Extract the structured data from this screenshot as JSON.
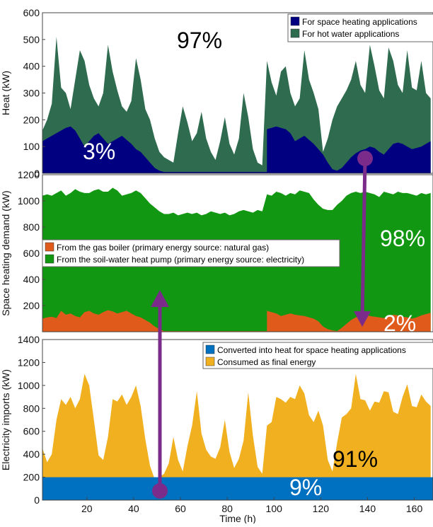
{
  "chart_data": [
    {
      "type": "area",
      "ylabel": "Heat (kW)",
      "ylim": [
        0,
        600
      ],
      "yticks": [
        0,
        100,
        200,
        300,
        400,
        500,
        600
      ],
      "xlim": [
        1,
        168
      ],
      "legend_position": "top-right",
      "series": [
        {
          "name": "For space heating applications",
          "color": "#000080",
          "x": [
            1,
            3,
            5,
            7,
            9,
            11,
            13,
            15,
            17,
            19,
            21,
            23,
            25,
            27,
            29,
            31,
            33,
            35,
            37,
            39,
            41,
            43,
            45,
            47,
            49,
            51,
            53,
            55,
            57,
            59,
            61,
            63,
            65,
            67,
            69,
            71,
            73,
            75,
            77,
            79,
            81,
            83,
            85,
            87,
            89,
            91,
            93,
            95,
            97,
            97,
            99,
            101,
            103,
            105,
            107,
            109,
            111,
            113,
            115,
            117,
            119,
            121,
            123,
            125,
            127,
            129,
            131,
            133,
            135,
            137,
            139,
            141,
            143,
            145,
            147,
            149,
            151,
            153,
            155,
            157,
            159,
            161,
            163,
            165,
            167
          ],
          "values": [
            120,
            130,
            140,
            150,
            160,
            170,
            175,
            160,
            130,
            100,
            120,
            140,
            150,
            130,
            110,
            120,
            130,
            140,
            125,
            110,
            90,
            80,
            60,
            40,
            20,
            10,
            5,
            5,
            5,
            5,
            5,
            5,
            5,
            5,
            5,
            5,
            5,
            5,
            5,
            5,
            5,
            5,
            5,
            5,
            5,
            5,
            5,
            5,
            5,
            165,
            170,
            175,
            170,
            165,
            150,
            120,
            130,
            140,
            125,
            110,
            90,
            70,
            40,
            15,
            10,
            20,
            40,
            60,
            75,
            85,
            90,
            100,
            95,
            80,
            70,
            90,
            110,
            115,
            110,
            100,
            90,
            95,
            100,
            110,
            120
          ]
        },
        {
          "name": "For hot water applications",
          "color": "#2e6b4f",
          "x": [
            1,
            3,
            5,
            7,
            9,
            11,
            13,
            15,
            17,
            19,
            21,
            23,
            25,
            27,
            29,
            31,
            33,
            35,
            37,
            39,
            41,
            43,
            45,
            47,
            49,
            51,
            53,
            55,
            57,
            59,
            61,
            63,
            65,
            67,
            69,
            71,
            73,
            75,
            77,
            79,
            81,
            83,
            85,
            87,
            89,
            91,
            93,
            95,
            97,
            99,
            101,
            103,
            105,
            107,
            109,
            111,
            113,
            115,
            117,
            119,
            121,
            123,
            125,
            127,
            129,
            131,
            133,
            135,
            137,
            139,
            141,
            143,
            145,
            147,
            149,
            151,
            153,
            155,
            157,
            159,
            161,
            163,
            165,
            167
          ],
          "values": [
            160,
            200,
            260,
            510,
            320,
            300,
            240,
            350,
            460,
            420,
            330,
            280,
            250,
            300,
            480,
            380,
            310,
            250,
            230,
            270,
            430,
            350,
            240,
            200,
            130,
            80,
            60,
            50,
            40,
            150,
            250,
            190,
            120,
            150,
            230,
            130,
            80,
            50,
            120,
            210,
            110,
            70,
            130,
            300,
            210,
            90,
            40,
            30,
            420,
            340,
            290,
            380,
            400,
            300,
            250,
            280,
            460,
            350,
            300,
            240,
            80,
            130,
            200,
            250,
            280,
            310,
            350,
            420,
            330,
            300,
            480,
            400,
            310,
            280,
            470,
            420,
            330,
            300,
            460,
            320,
            310,
            420,
            300,
            280
          ]
        }
      ],
      "annotations": [
        "97%",
        "3%"
      ]
    },
    {
      "type": "area",
      "ylabel": "Space heating demand (kW)",
      "ylim": [
        0,
        1200
      ],
      "yticks": [
        200,
        400,
        600,
        800,
        1000,
        1200
      ],
      "xlim": [
        1,
        168
      ],
      "legend_position": "middle-left",
      "series": [
        {
          "name": "From the gas boiler (primary energy source: natural gas)",
          "color": "#e05a1c",
          "x": [
            1,
            3,
            5,
            7,
            9,
            11,
            13,
            15,
            17,
            19,
            21,
            23,
            25,
            27,
            29,
            31,
            33,
            35,
            37,
            39,
            41,
            43,
            45,
            47,
            49,
            51,
            53,
            55,
            57,
            59,
            61,
            63,
            65,
            67,
            69,
            71,
            73,
            75,
            77,
            79,
            81,
            83,
            85,
            87,
            89,
            91,
            93,
            95,
            97,
            97,
            99,
            101,
            103,
            105,
            107,
            109,
            111,
            113,
            115,
            117,
            119,
            121,
            123,
            125,
            127,
            129,
            131,
            133,
            135,
            137,
            139,
            141,
            143,
            145,
            147,
            149,
            151,
            153,
            155,
            157,
            159,
            161,
            163,
            165,
            167
          ],
          "values": [
            100,
            110,
            115,
            105,
            160,
            130,
            140,
            120,
            110,
            150,
            160,
            140,
            130,
            150,
            165,
            155,
            140,
            150,
            160,
            140,
            120,
            110,
            90,
            70,
            40,
            20,
            5,
            5,
            5,
            5,
            5,
            5,
            5,
            5,
            5,
            5,
            5,
            5,
            5,
            5,
            5,
            5,
            5,
            5,
            5,
            5,
            5,
            5,
            5,
            160,
            150,
            140,
            120,
            130,
            140,
            130,
            125,
            120,
            110,
            100,
            80,
            40,
            20,
            10,
            5,
            30,
            60,
            90,
            110,
            120,
            130,
            120,
            115,
            110,
            105,
            120,
            130,
            125,
            115,
            110,
            100,
            110,
            125,
            135,
            145
          ]
        },
        {
          "name": "From the soil-water heat pump (primary energy source: electricity)",
          "color": "#119711",
          "x": [
            1,
            3,
            5,
            7,
            9,
            11,
            13,
            15,
            17,
            19,
            21,
            23,
            25,
            27,
            29,
            31,
            33,
            35,
            37,
            39,
            41,
            43,
            45,
            47,
            49,
            51,
            53,
            55,
            57,
            59,
            61,
            63,
            65,
            67,
            69,
            71,
            73,
            75,
            77,
            79,
            81,
            83,
            85,
            87,
            89,
            91,
            93,
            95,
            97,
            99,
            101,
            103,
            105,
            107,
            109,
            111,
            113,
            115,
            117,
            119,
            121,
            123,
            125,
            127,
            129,
            131,
            133,
            135,
            137,
            139,
            141,
            143,
            145,
            147,
            149,
            151,
            153,
            155,
            157,
            159,
            161,
            163,
            165,
            167
          ],
          "values": [
            1040,
            1050,
            1040,
            1060,
            1080,
            1040,
            1060,
            1090,
            1070,
            1060,
            1060,
            1080,
            1090,
            1070,
            1070,
            1100,
            1080,
            1040,
            1050,
            1060,
            1080,
            1060,
            1020,
            980,
            950,
            920,
            900,
            900,
            910,
            890,
            900,
            910,
            900,
            910,
            890,
            900,
            920,
            910,
            900,
            910,
            890,
            900,
            920,
            930,
            920,
            910,
            930,
            920,
            1050,
            1040,
            1070,
            1060,
            1040,
            1060,
            1050,
            1080,
            1070,
            1060,
            1010,
            970,
            940,
            930,
            930,
            970,
            1000,
            1040,
            1060,
            1070,
            1060,
            1070,
            1060,
            1050,
            1030,
            1070,
            1060,
            1050,
            1070,
            1060,
            1060,
            1050,
            1040,
            1060,
            1050,
            1060
          ]
        }
      ],
      "annotations": [
        "98%",
        "2%"
      ]
    },
    {
      "type": "area",
      "xlabel": "Time (h)",
      "ylabel": "Electricity imports (kW)",
      "ylim": [
        0,
        1400
      ],
      "yticks": [
        0,
        200,
        400,
        600,
        800,
        1000,
        1200,
        1400
      ],
      "xlim": [
        1,
        168
      ],
      "xticks": [
        20,
        40,
        60,
        80,
        100,
        120,
        140,
        160
      ],
      "legend_position": "top-right",
      "series": [
        {
          "name": "Converted into heat for space heating applications",
          "color": "#0070c0",
          "x": [
            1,
            168
          ],
          "values": [
            200,
            200
          ]
        },
        {
          "name": "Consumed as final energy",
          "color": "#f0b020",
          "x": [
            1,
            3,
            5,
            7,
            9,
            11,
            13,
            15,
            17,
            19,
            21,
            23,
            25,
            27,
            29,
            31,
            33,
            35,
            37,
            39,
            41,
            43,
            45,
            47,
            49,
            51,
            53,
            55,
            57,
            59,
            61,
            63,
            65,
            67,
            69,
            71,
            73,
            75,
            77,
            79,
            81,
            83,
            85,
            87,
            89,
            91,
            93,
            95,
            97,
            99,
            101,
            103,
            105,
            107,
            109,
            111,
            113,
            115,
            117,
            119,
            121,
            123,
            125,
            127,
            129,
            131,
            133,
            135,
            137,
            139,
            141,
            143,
            145,
            147,
            149,
            151,
            153,
            155,
            157,
            159,
            161,
            163,
            165,
            167
          ],
          "values": [
            450,
            330,
            400,
            700,
            880,
            830,
            900,
            800,
            880,
            1100,
            1000,
            700,
            390,
            350,
            550,
            880,
            860,
            920,
            830,
            900,
            1000,
            820,
            530,
            300,
            180,
            200,
            230,
            320,
            550,
            350,
            250,
            470,
            650,
            950,
            580,
            440,
            380,
            360,
            460,
            700,
            420,
            280,
            360,
            520,
            940,
            560,
            290,
            230,
            650,
            680,
            900,
            880,
            850,
            900,
            880,
            1000,
            930,
            740,
            680,
            780,
            650,
            350,
            250,
            500,
            720,
            750,
            800,
            1100,
            880,
            870,
            780,
            860,
            850,
            950,
            940,
            770,
            750,
            900,
            1010,
            820,
            810,
            920,
            860,
            820
          ]
        }
      ],
      "annotations": [
        "91%",
        "9%"
      ]
    }
  ]
}
